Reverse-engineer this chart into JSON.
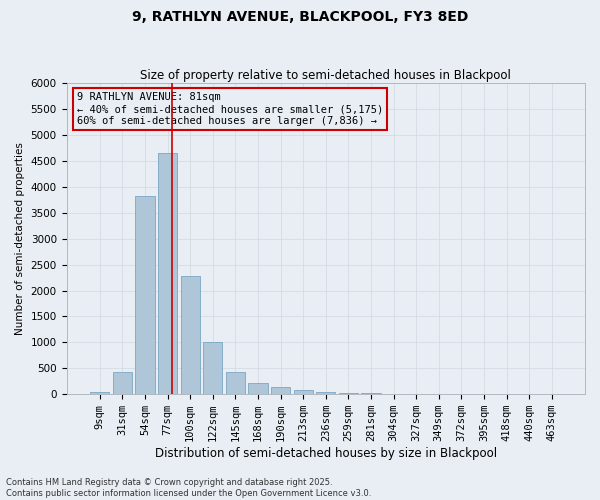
{
  "title1": "9, RATHLYN AVENUE, BLACKPOOL, FY3 8ED",
  "title2": "Size of property relative to semi-detached houses in Blackpool",
  "xlabel": "Distribution of semi-detached houses by size in Blackpool",
  "ylabel": "Number of semi-detached properties",
  "categories": [
    "9sqm",
    "31sqm",
    "54sqm",
    "77sqm",
    "100sqm",
    "122sqm",
    "145sqm",
    "168sqm",
    "190sqm",
    "213sqm",
    "236sqm",
    "259sqm",
    "281sqm",
    "304sqm",
    "327sqm",
    "349sqm",
    "372sqm",
    "395sqm",
    "418sqm",
    "440sqm",
    "463sqm"
  ],
  "values": [
    50,
    420,
    3820,
    4650,
    2280,
    1010,
    430,
    210,
    130,
    80,
    50,
    25,
    15,
    8,
    5,
    4,
    3,
    2,
    1,
    1,
    0
  ],
  "bar_color": "#aec6d8",
  "bar_edge_color": "#6a9dbf",
  "grid_color": "#d0d8e0",
  "bg_color": "#e8eef4",
  "vline_x": 3.18,
  "vline_color": "#cc0000",
  "annotation_text": "9 RATHLYN AVENUE: 81sqm\n← 40% of semi-detached houses are smaller (5,175)\n60% of semi-detached houses are larger (7,836) →",
  "annotation_box_color": "#cc0000",
  "footer": "Contains HM Land Registry data © Crown copyright and database right 2025.\nContains public sector information licensed under the Open Government Licence v3.0.",
  "ylim": [
    0,
    6000
  ],
  "yticks": [
    0,
    500,
    1000,
    1500,
    2000,
    2500,
    3000,
    3500,
    4000,
    4500,
    5000,
    5500,
    6000
  ],
  "title1_fontsize": 10,
  "title2_fontsize": 8.5,
  "xlabel_fontsize": 8.5,
  "ylabel_fontsize": 7.5,
  "tick_fontsize": 7.5,
  "footer_fontsize": 6.0,
  "annot_fontsize": 7.5
}
